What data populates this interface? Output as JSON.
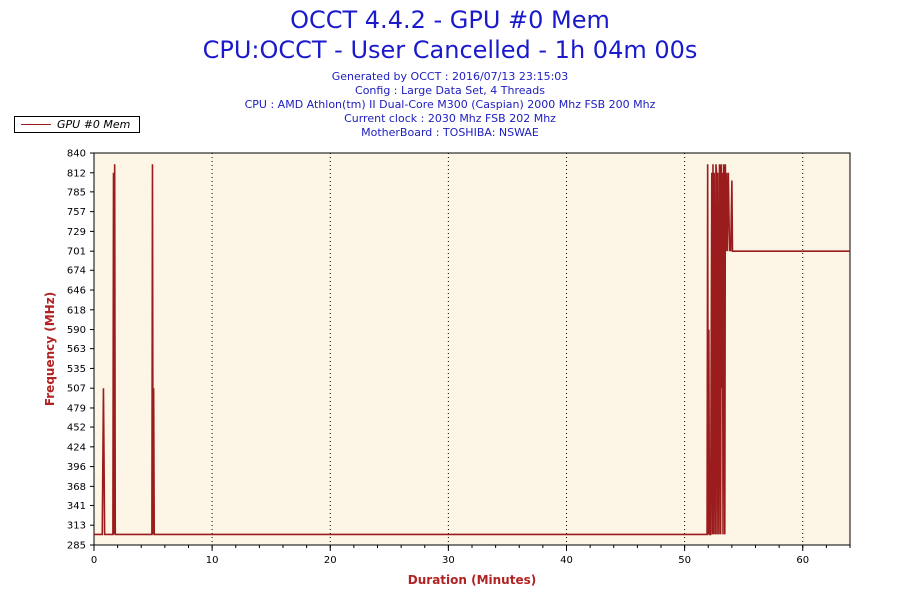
{
  "header": {
    "title_line1": "OCCT 4.4.2 - GPU #0 Mem",
    "title_line2": "CPU:OCCT - User Cancelled - 1h 04m 00s",
    "info_lines": [
      "Generated by OCCT : 2016/07/13 23:15:03",
      "Config : Large Data Set, 4 Threads",
      "CPU : AMD Athlon(tm) II Dual-Core M300 (Caspian) 2000 Mhz FSB 200 Mhz",
      "Current clock : 2030 Mhz FSB 202 Mhz",
      "MotherBoard : TOSHIBA: NSWAE"
    ]
  },
  "legend": {
    "label": "GPU #0 Mem",
    "position": "top-left"
  },
  "colors": {
    "title": "#1a1acc",
    "info": "#2020c0",
    "axis_label": "#b22222",
    "series": "#9b1c1c",
    "plot_bg": "#fdf5e6"
  },
  "chart_data": {
    "type": "line",
    "title": "OCCT 4.4.2 - GPU #0 Mem",
    "xlabel": "Duration (Minutes)",
    "ylabel": "Frequency (MHz)",
    "xlim": [
      0,
      64
    ],
    "ylim": [
      285,
      840
    ],
    "x_ticks": [
      0,
      10,
      20,
      30,
      40,
      50,
      60
    ],
    "y_ticks": [
      285,
      313,
      341,
      368,
      396,
      424,
      452,
      479,
      507,
      535,
      563,
      590,
      618,
      646,
      674,
      701,
      729,
      757,
      785,
      812,
      840
    ],
    "grid": "vertical dotted",
    "series": [
      {
        "name": "GPU #0 Mem",
        "points": [
          [
            0,
            300
          ],
          [
            0.7,
            300
          ],
          [
            0.8,
            507
          ],
          [
            0.9,
            300
          ],
          [
            1.6,
            300
          ],
          [
            1.65,
            812
          ],
          [
            1.7,
            300
          ],
          [
            1.75,
            824
          ],
          [
            1.8,
            300
          ],
          [
            4.9,
            300
          ],
          [
            4.95,
            824
          ],
          [
            5.0,
            300
          ],
          [
            5.05,
            507
          ],
          [
            5.1,
            300
          ],
          [
            51.9,
            300
          ],
          [
            51.95,
            824
          ],
          [
            52.0,
            300
          ],
          [
            52.05,
            590
          ],
          [
            52.1,
            300
          ],
          [
            52.2,
            300
          ],
          [
            52.3,
            812
          ],
          [
            52.35,
            300
          ],
          [
            52.4,
            824
          ],
          [
            52.45,
            300
          ],
          [
            52.5,
            812
          ],
          [
            52.55,
            507
          ],
          [
            52.6,
            300
          ],
          [
            52.65,
            824
          ],
          [
            52.7,
            812
          ],
          [
            52.75,
            300
          ],
          [
            52.8,
            812
          ],
          [
            52.85,
            507
          ],
          [
            52.9,
            300
          ],
          [
            52.95,
            824
          ],
          [
            53.0,
            812
          ],
          [
            53.05,
            300
          ],
          [
            53.1,
            824
          ],
          [
            53.15,
            507
          ],
          [
            53.2,
            812
          ],
          [
            53.25,
            300
          ],
          [
            53.3,
            824
          ],
          [
            53.35,
            812
          ],
          [
            53.4,
            300
          ],
          [
            53.45,
            824
          ],
          [
            53.5,
            701
          ],
          [
            53.55,
            812
          ],
          [
            53.6,
            701
          ],
          [
            53.7,
            812
          ],
          [
            53.8,
            701
          ],
          [
            53.85,
            718
          ],
          [
            53.9,
            701
          ],
          [
            54.0,
            801
          ],
          [
            54.05,
            701
          ],
          [
            64,
            701
          ]
        ]
      }
    ]
  }
}
